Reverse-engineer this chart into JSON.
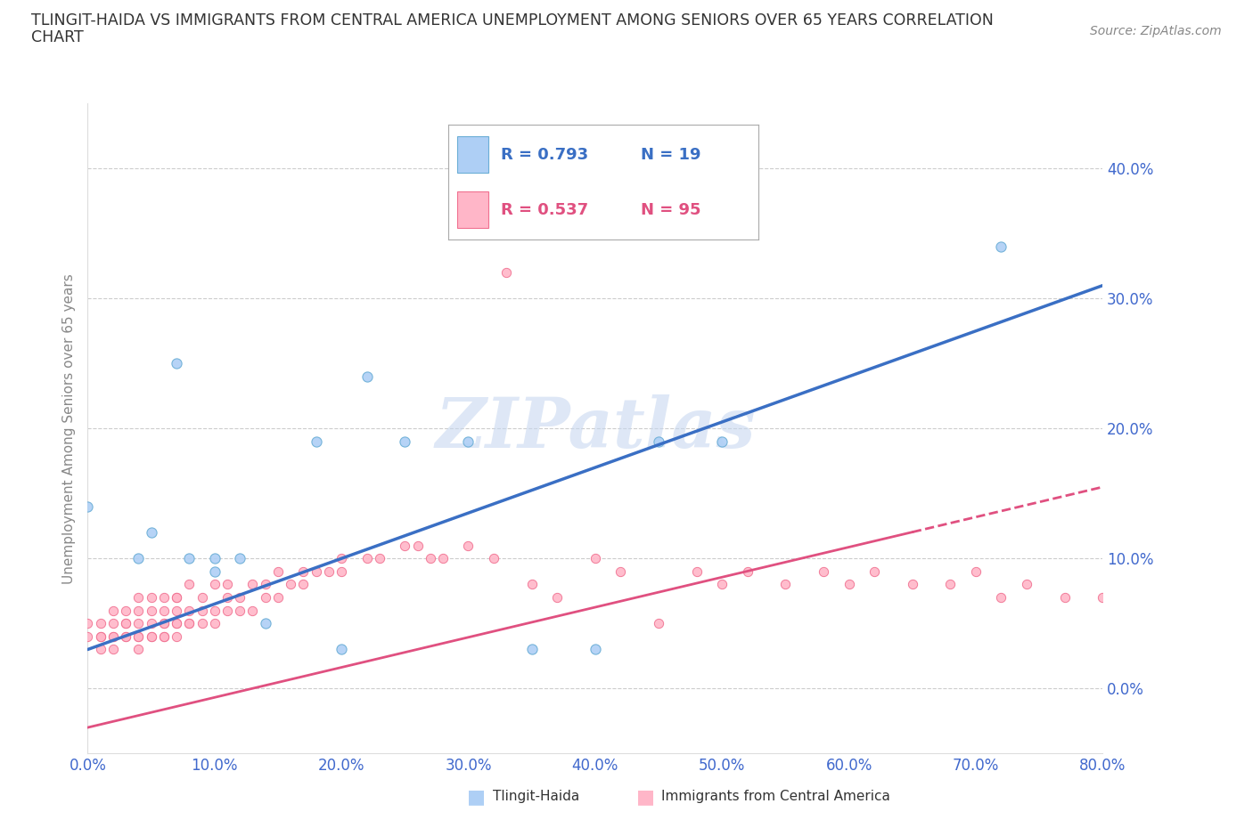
{
  "title_line1": "TLINGIT-HAIDA VS IMMIGRANTS FROM CENTRAL AMERICA UNEMPLOYMENT AMONG SENIORS OVER 65 YEARS CORRELATION",
  "title_line2": "CHART",
  "source_text": "Source: ZipAtlas.com",
  "ylabel": "Unemployment Among Seniors over 65 years",
  "xlim": [
    0.0,
    0.8
  ],
  "ylim": [
    -0.05,
    0.45
  ],
  "yticks": [
    0.0,
    0.1,
    0.2,
    0.3,
    0.4
  ],
  "xticks": [
    0.0,
    0.1,
    0.2,
    0.3,
    0.4,
    0.5,
    0.6,
    0.7,
    0.8
  ],
  "series1_name": "Tlingit-Haida",
  "series1_color": "#aecff5",
  "series1_edge_color": "#6baed6",
  "series1_line_color": "#3a6fc4",
  "series1_R": 0.793,
  "series1_N": 19,
  "series1_x": [
    0.0,
    0.04,
    0.05,
    0.07,
    0.08,
    0.1,
    0.1,
    0.12,
    0.14,
    0.18,
    0.2,
    0.22,
    0.25,
    0.3,
    0.35,
    0.4,
    0.45,
    0.5,
    0.72
  ],
  "series1_y": [
    0.14,
    0.1,
    0.12,
    0.25,
    0.1,
    0.1,
    0.09,
    0.1,
    0.05,
    0.19,
    0.03,
    0.24,
    0.19,
    0.19,
    0.03,
    0.03,
    0.19,
    0.19,
    0.34
  ],
  "series2_name": "Immigrants from Central America",
  "series2_color": "#ffb6c8",
  "series2_edge_color": "#f07090",
  "series2_line_color": "#e05080",
  "series2_R": 0.537,
  "series2_N": 95,
  "series2_x": [
    0.0,
    0.0,
    0.01,
    0.01,
    0.01,
    0.01,
    0.02,
    0.02,
    0.02,
    0.02,
    0.02,
    0.03,
    0.03,
    0.03,
    0.03,
    0.03,
    0.04,
    0.04,
    0.04,
    0.04,
    0.04,
    0.04,
    0.05,
    0.05,
    0.05,
    0.05,
    0.05,
    0.06,
    0.06,
    0.06,
    0.06,
    0.06,
    0.06,
    0.07,
    0.07,
    0.07,
    0.07,
    0.07,
    0.07,
    0.08,
    0.08,
    0.08,
    0.08,
    0.09,
    0.09,
    0.09,
    0.1,
    0.1,
    0.1,
    0.11,
    0.11,
    0.11,
    0.12,
    0.12,
    0.13,
    0.13,
    0.14,
    0.14,
    0.15,
    0.15,
    0.16,
    0.17,
    0.17,
    0.18,
    0.19,
    0.2,
    0.2,
    0.22,
    0.23,
    0.25,
    0.26,
    0.27,
    0.28,
    0.3,
    0.32,
    0.33,
    0.35,
    0.37,
    0.4,
    0.42,
    0.45,
    0.48,
    0.5,
    0.52,
    0.55,
    0.58,
    0.6,
    0.62,
    0.65,
    0.68,
    0.7,
    0.72,
    0.74,
    0.77,
    0.8
  ],
  "series2_y": [
    0.04,
    0.05,
    0.03,
    0.04,
    0.04,
    0.05,
    0.03,
    0.04,
    0.04,
    0.05,
    0.06,
    0.04,
    0.04,
    0.05,
    0.05,
    0.06,
    0.03,
    0.04,
    0.04,
    0.05,
    0.06,
    0.07,
    0.04,
    0.04,
    0.05,
    0.06,
    0.07,
    0.04,
    0.04,
    0.05,
    0.05,
    0.06,
    0.07,
    0.04,
    0.05,
    0.05,
    0.06,
    0.07,
    0.07,
    0.05,
    0.05,
    0.06,
    0.08,
    0.05,
    0.06,
    0.07,
    0.05,
    0.06,
    0.08,
    0.06,
    0.07,
    0.08,
    0.06,
    0.07,
    0.06,
    0.08,
    0.07,
    0.08,
    0.07,
    0.09,
    0.08,
    0.08,
    0.09,
    0.09,
    0.09,
    0.09,
    0.1,
    0.1,
    0.1,
    0.11,
    0.11,
    0.1,
    0.1,
    0.11,
    0.1,
    0.32,
    0.08,
    0.07,
    0.1,
    0.09,
    0.05,
    0.09,
    0.08,
    0.09,
    0.08,
    0.09,
    0.08,
    0.09,
    0.08,
    0.08,
    0.09,
    0.07,
    0.08,
    0.07,
    0.07
  ],
  "legend_R1": "R = 0.793",
  "legend_N1": "N = 19",
  "legend_R2": "R = 0.537",
  "legend_N2": "N = 95",
  "watermark": "ZIPatlas",
  "watermark_color": "#c8d8f0",
  "background_color": "#FFFFFF",
  "grid_color": "#CCCCCC",
  "tick_color": "#4169CD",
  "ylabel_color": "#888888",
  "title_color": "#333333"
}
